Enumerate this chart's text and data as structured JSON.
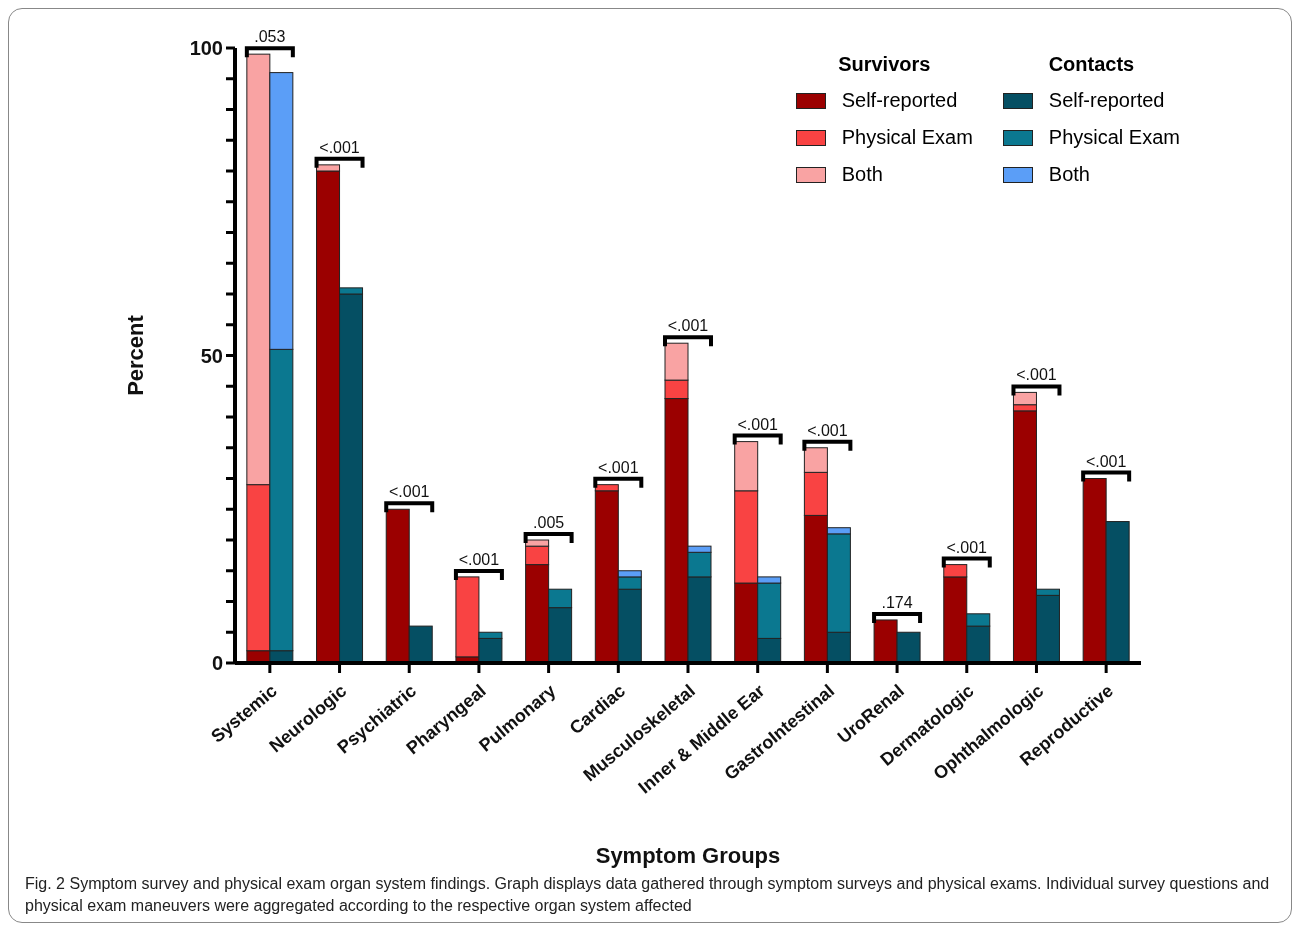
{
  "chart_data": {
    "type": "bar",
    "xlabel": "Symptom Groups",
    "ylabel": "Percent",
    "categories": [
      "Systemic",
      "Neurologic",
      "Psychiatric",
      "Pharyngeal",
      "Pulmonary",
      "Cardiac",
      "Musculoskeletal",
      "Inner & Middle Ear",
      "GastroIntestinal",
      "UroRenal",
      "Dermatologic",
      "Ophthalmologic",
      "Reproductive"
    ],
    "series": [
      {
        "name": "Self-reported",
        "color": "#9b0000",
        "values": [
          2,
          80,
          25,
          1,
          16,
          28,
          43,
          13,
          24,
          7,
          14,
          41,
          30
        ],
        "base": [
          0,
          0,
          0,
          0,
          0,
          0,
          0,
          0,
          0,
          0,
          0,
          0,
          0
        ]
      },
      {
        "name": "Physical Exam",
        "color": "#f94343",
        "values": [
          27,
          0,
          0,
          13,
          3,
          1,
          3,
          15,
          7,
          0,
          2,
          1,
          0
        ],
        "base": [
          2,
          null,
          null,
          1,
          16,
          28,
          43,
          13,
          24,
          null,
          14,
          41,
          null
        ]
      },
      {
        "name": "Both",
        "color": "#f9a3a3",
        "values": [
          70,
          1,
          0,
          0,
          1,
          0,
          6,
          8,
          4,
          0,
          0,
          2,
          0
        ],
        "base": [
          29,
          80,
          null,
          null,
          19,
          null,
          46,
          28,
          31,
          null,
          null,
          42,
          null
        ]
      },
      {
        "name": "Self-reported",
        "color": "#054f63",
        "values": [
          2,
          60,
          6,
          4,
          9,
          12,
          14,
          4,
          5,
          5,
          6,
          11,
          23
        ],
        "base": [
          0,
          0,
          0,
          0,
          0,
          0,
          0,
          0,
          0,
          0,
          0,
          0,
          0
        ]
      },
      {
        "name": "Physical Exam",
        "color": "#0b7890",
        "values": [
          49,
          1,
          0,
          1,
          3,
          2,
          4,
          9,
          16,
          0,
          2,
          1,
          0
        ],
        "base": [
          2,
          60,
          null,
          4,
          9,
          12,
          14,
          4,
          5,
          null,
          6,
          11,
          null
        ]
      },
      {
        "name": "Both",
        "color": "#5b9ef7",
        "values": [
          45,
          0,
          0,
          0,
          0,
          1,
          1,
          1,
          1,
          0,
          0,
          0,
          0
        ],
        "base": [
          51,
          null,
          null,
          null,
          null,
          14,
          18,
          13,
          21,
          null,
          null,
          null,
          null
        ]
      }
    ],
    "ylim": [
      0,
      100
    ],
    "yticks": [
      0,
      {
        "value": 5,
        "label": null
      },
      {
        "value": 10,
        "label": null
      },
      {
        "value": 15,
        "label": null
      },
      {
        "value": 20,
        "label": null
      },
      {
        "value": 25,
        "label": null
      },
      {
        "value": 30,
        "label": null
      },
      {
        "value": 35,
        "label": null
      },
      {
        "value": 40,
        "label": null
      },
      {
        "value": 45,
        "label": null
      },
      50,
      {
        "value": 55,
        "label": null
      },
      {
        "value": 60,
        "label": null
      },
      {
        "value": 65,
        "label": null
      },
      {
        "value": 70,
        "label": null
      },
      {
        "value": 75,
        "label": null
      },
      {
        "value": 80,
        "label": null
      },
      {
        "value": 85,
        "label": null
      },
      {
        "value": 90,
        "label": null
      },
      {
        "value": 95,
        "label": null
      },
      100
    ],
    "legend": "top right",
    "annotations": [
      "Survivors",
      "Contacts",
      ".053",
      "<.001",
      "<.001",
      "<.001",
      ".005",
      "<.001",
      "<.001",
      "<.001",
      "<.001",
      ".174",
      "<.001",
      "<.001",
      "<.001",
      "Fig. 2 Symptom survey and physical exam organ system findings. Graph displays data gathered through symptom surveys and physical exams. Individual survey questions and physical exam maneuvers were aggregated according to the respective organ system affected"
    ]
  }
}
